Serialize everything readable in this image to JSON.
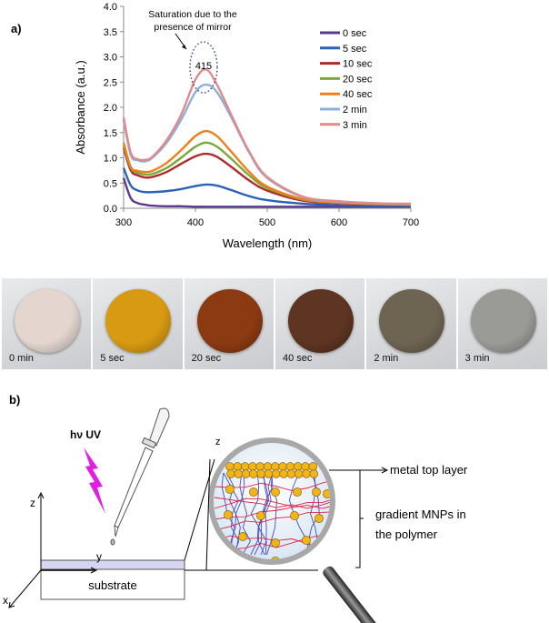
{
  "panel_a_label": "a)",
  "panel_b_label": "b)",
  "chart_data": {
    "type": "line",
    "title": "",
    "xlabel": "Wavelength (nm)",
    "ylabel": "Absorbance (a.u.)",
    "xlim": [
      300,
      700
    ],
    "ylim": [
      0,
      4.0
    ],
    "xticks": [
      "300",
      "400",
      "500",
      "600",
      "700"
    ],
    "yticks": [
      "0.0",
      "0.5",
      "1.0",
      "1.5",
      "2.0",
      "2.5",
      "3.0",
      "3.5",
      "4.0"
    ],
    "grid": false,
    "legend": "top-right",
    "annotation": {
      "text_line1": "Saturation due to the",
      "text_line2": "presence of mirror",
      "peak_label": "415"
    },
    "x": [
      300,
      310,
      320,
      330,
      340,
      360,
      380,
      400,
      415,
      430,
      450,
      475,
      500,
      550,
      600,
      650,
      700
    ],
    "series": [
      {
        "name": "0 sec",
        "color": "#5b3a8c",
        "values": [
          0.6,
          0.2,
          0.1,
          0.07,
          0.05,
          0.04,
          0.04,
          0.03,
          0.03,
          0.03,
          0.03,
          0.03,
          0.03,
          0.03,
          0.03,
          0.03,
          0.03
        ]
      },
      {
        "name": "5 sec",
        "color": "#2a62b8",
        "values": [
          0.8,
          0.45,
          0.35,
          0.32,
          0.32,
          0.34,
          0.38,
          0.44,
          0.47,
          0.45,
          0.36,
          0.24,
          0.16,
          0.09,
          0.06,
          0.05,
          0.05
        ]
      },
      {
        "name": "10 sec",
        "color": "#b02a2a",
        "values": [
          1.2,
          0.75,
          0.65,
          0.61,
          0.62,
          0.72,
          0.88,
          1.03,
          1.08,
          1.02,
          0.82,
          0.55,
          0.35,
          0.15,
          0.1,
          0.08,
          0.07
        ]
      },
      {
        "name": "20 sec",
        "color": "#7aa83a",
        "values": [
          1.25,
          0.8,
          0.7,
          0.67,
          0.68,
          0.8,
          1.0,
          1.22,
          1.3,
          1.22,
          0.98,
          0.65,
          0.4,
          0.17,
          0.11,
          0.08,
          0.07
        ]
      },
      {
        "name": "40 sec",
        "color": "#f07f1a",
        "values": [
          1.3,
          0.82,
          0.74,
          0.72,
          0.74,
          0.9,
          1.15,
          1.43,
          1.53,
          1.43,
          1.12,
          0.72,
          0.43,
          0.18,
          0.11,
          0.09,
          0.08
        ]
      },
      {
        "name": "2 min",
        "color": "#8eaedc",
        "values": [
          1.75,
          1.05,
          0.95,
          0.93,
          1.0,
          1.3,
          1.75,
          2.3,
          2.45,
          2.3,
          1.8,
          1.1,
          0.6,
          0.22,
          0.13,
          0.1,
          0.08
        ]
      },
      {
        "name": "3 min",
        "color": "#e08a8c",
        "values": [
          1.8,
          1.1,
          0.97,
          0.96,
          1.02,
          1.35,
          1.85,
          2.55,
          2.75,
          2.45,
          1.85,
          1.12,
          0.62,
          0.23,
          0.14,
          0.1,
          0.09
        ]
      }
    ]
  },
  "photos": [
    {
      "label": "0 min",
      "color": "#e4d6cf"
    },
    {
      "label": "5 sec",
      "color": "#d79a12"
    },
    {
      "label": "20 sec",
      "color": "#8c3a12"
    },
    {
      "label": "40 sec",
      "color": "#5e3422"
    },
    {
      "label": "2 min",
      "color": "#6e6452"
    },
    {
      "label": "3 min",
      "color": "#9a9a96"
    }
  ],
  "diagram": {
    "light_label": "hν UV",
    "axis_z": "z",
    "axis_y": "y",
    "axis_x": "x",
    "substrate": "substrate",
    "zoom_axis_z": "z",
    "metal_top_layer": "metal top layer",
    "gradient_line1": "gradient MNPs in",
    "gradient_line2": "the polymer",
    "particle_color": "#f2b418",
    "lightning_color": "#e020e0"
  }
}
